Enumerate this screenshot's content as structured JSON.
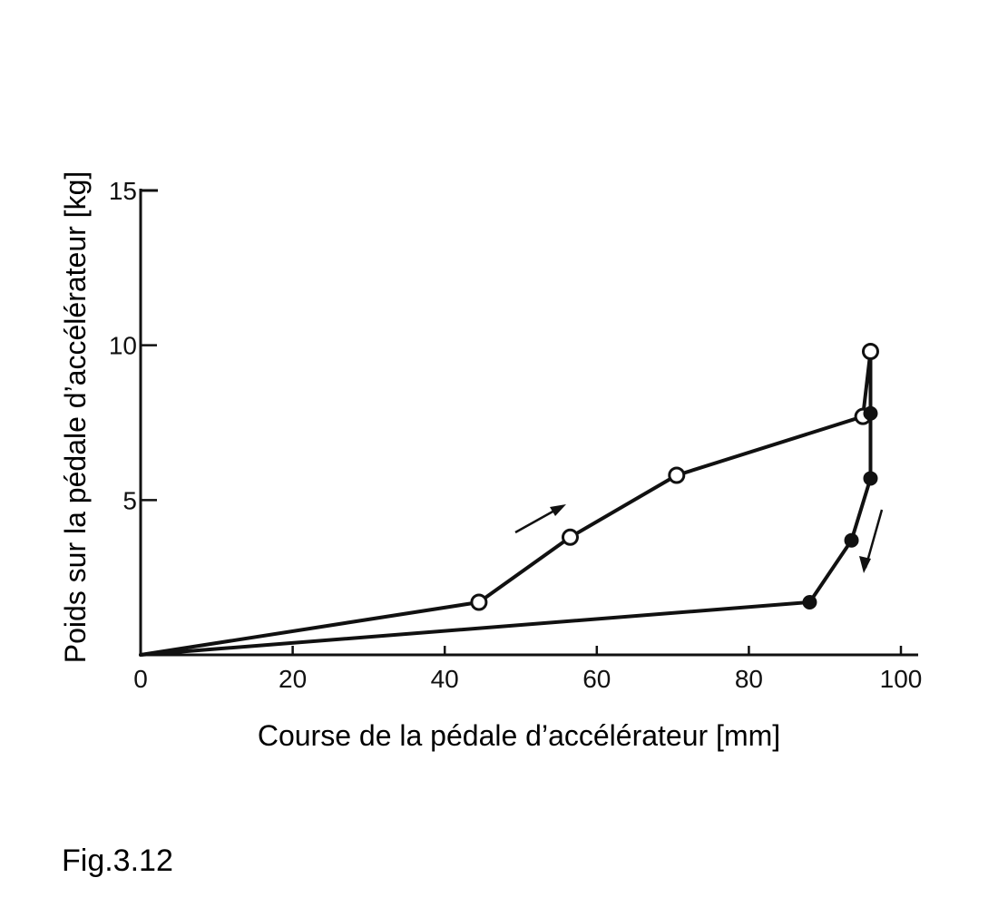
{
  "caption": "Fig.3.12",
  "chart_data": {
    "type": "line",
    "xlabel": "Course de la pédale d’accélérateur [mm]",
    "ylabel": "Poids sur la pédale d’accélérateur [kg]",
    "xlim": [
      0,
      100
    ],
    "ylim": [
      0,
      15
    ],
    "x_ticks": [
      "0",
      "20",
      "40",
      "60",
      "80",
      "100"
    ],
    "y_ticks": [
      "5",
      "10",
      "15"
    ],
    "grid": false,
    "series": [
      {
        "marker": "open-circle",
        "direction": "increasing",
        "x": [
          0,
          44.5,
          56.5,
          70.5,
          95,
          96
        ],
        "y": [
          0,
          1.7,
          3.8,
          5.8,
          7.7,
          9.8
        ]
      },
      {
        "marker": "filled-circle",
        "direction": "decreasing",
        "x": [
          96,
          96,
          96,
          93.5,
          88,
          0
        ],
        "y": [
          9.8,
          7.8,
          5.7,
          3.7,
          1.7,
          0
        ]
      }
    ]
  }
}
